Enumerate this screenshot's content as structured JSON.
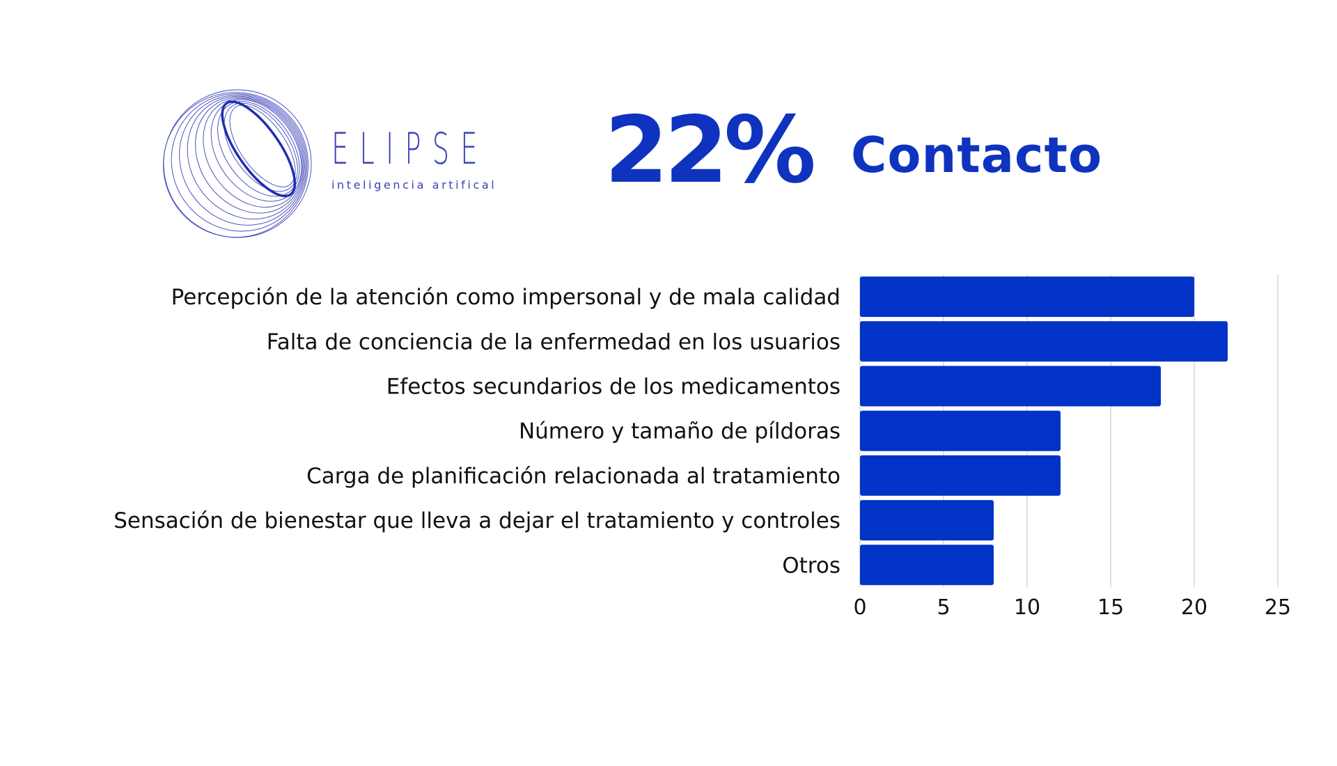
{
  "brand": {
    "name": "ELIPSE",
    "tagline": "inteligencia artifical"
  },
  "headline": {
    "value": "22%",
    "label": "Contacto"
  },
  "colors": {
    "bar": "#0033c6",
    "accent": "#0f33bf",
    "logo": "#3a41b8",
    "grid": "#d6d6d6",
    "text": "#111111"
  },
  "chart_data": {
    "type": "bar",
    "orientation": "horizontal",
    "categories": [
      "Percepción de la atención como impersonal y de mala calidad",
      "Falta de conciencia de la enfermedad en los usuarios",
      "Efectos secundarios de los medicamentos",
      "Número y tamaño de píldoras",
      "Carga de planificación relacionada al tratamiento",
      "Sensación de bienestar que lleva a dejar el tratamiento y controles",
      "Otros"
    ],
    "values": [
      20,
      22,
      18,
      12,
      12,
      8,
      8
    ],
    "xlim": [
      0,
      25
    ],
    "xticks": [
      "0",
      "5",
      "10",
      "15",
      "20",
      "25"
    ],
    "title": "",
    "xlabel": "",
    "ylabel": "",
    "grid": true
  }
}
